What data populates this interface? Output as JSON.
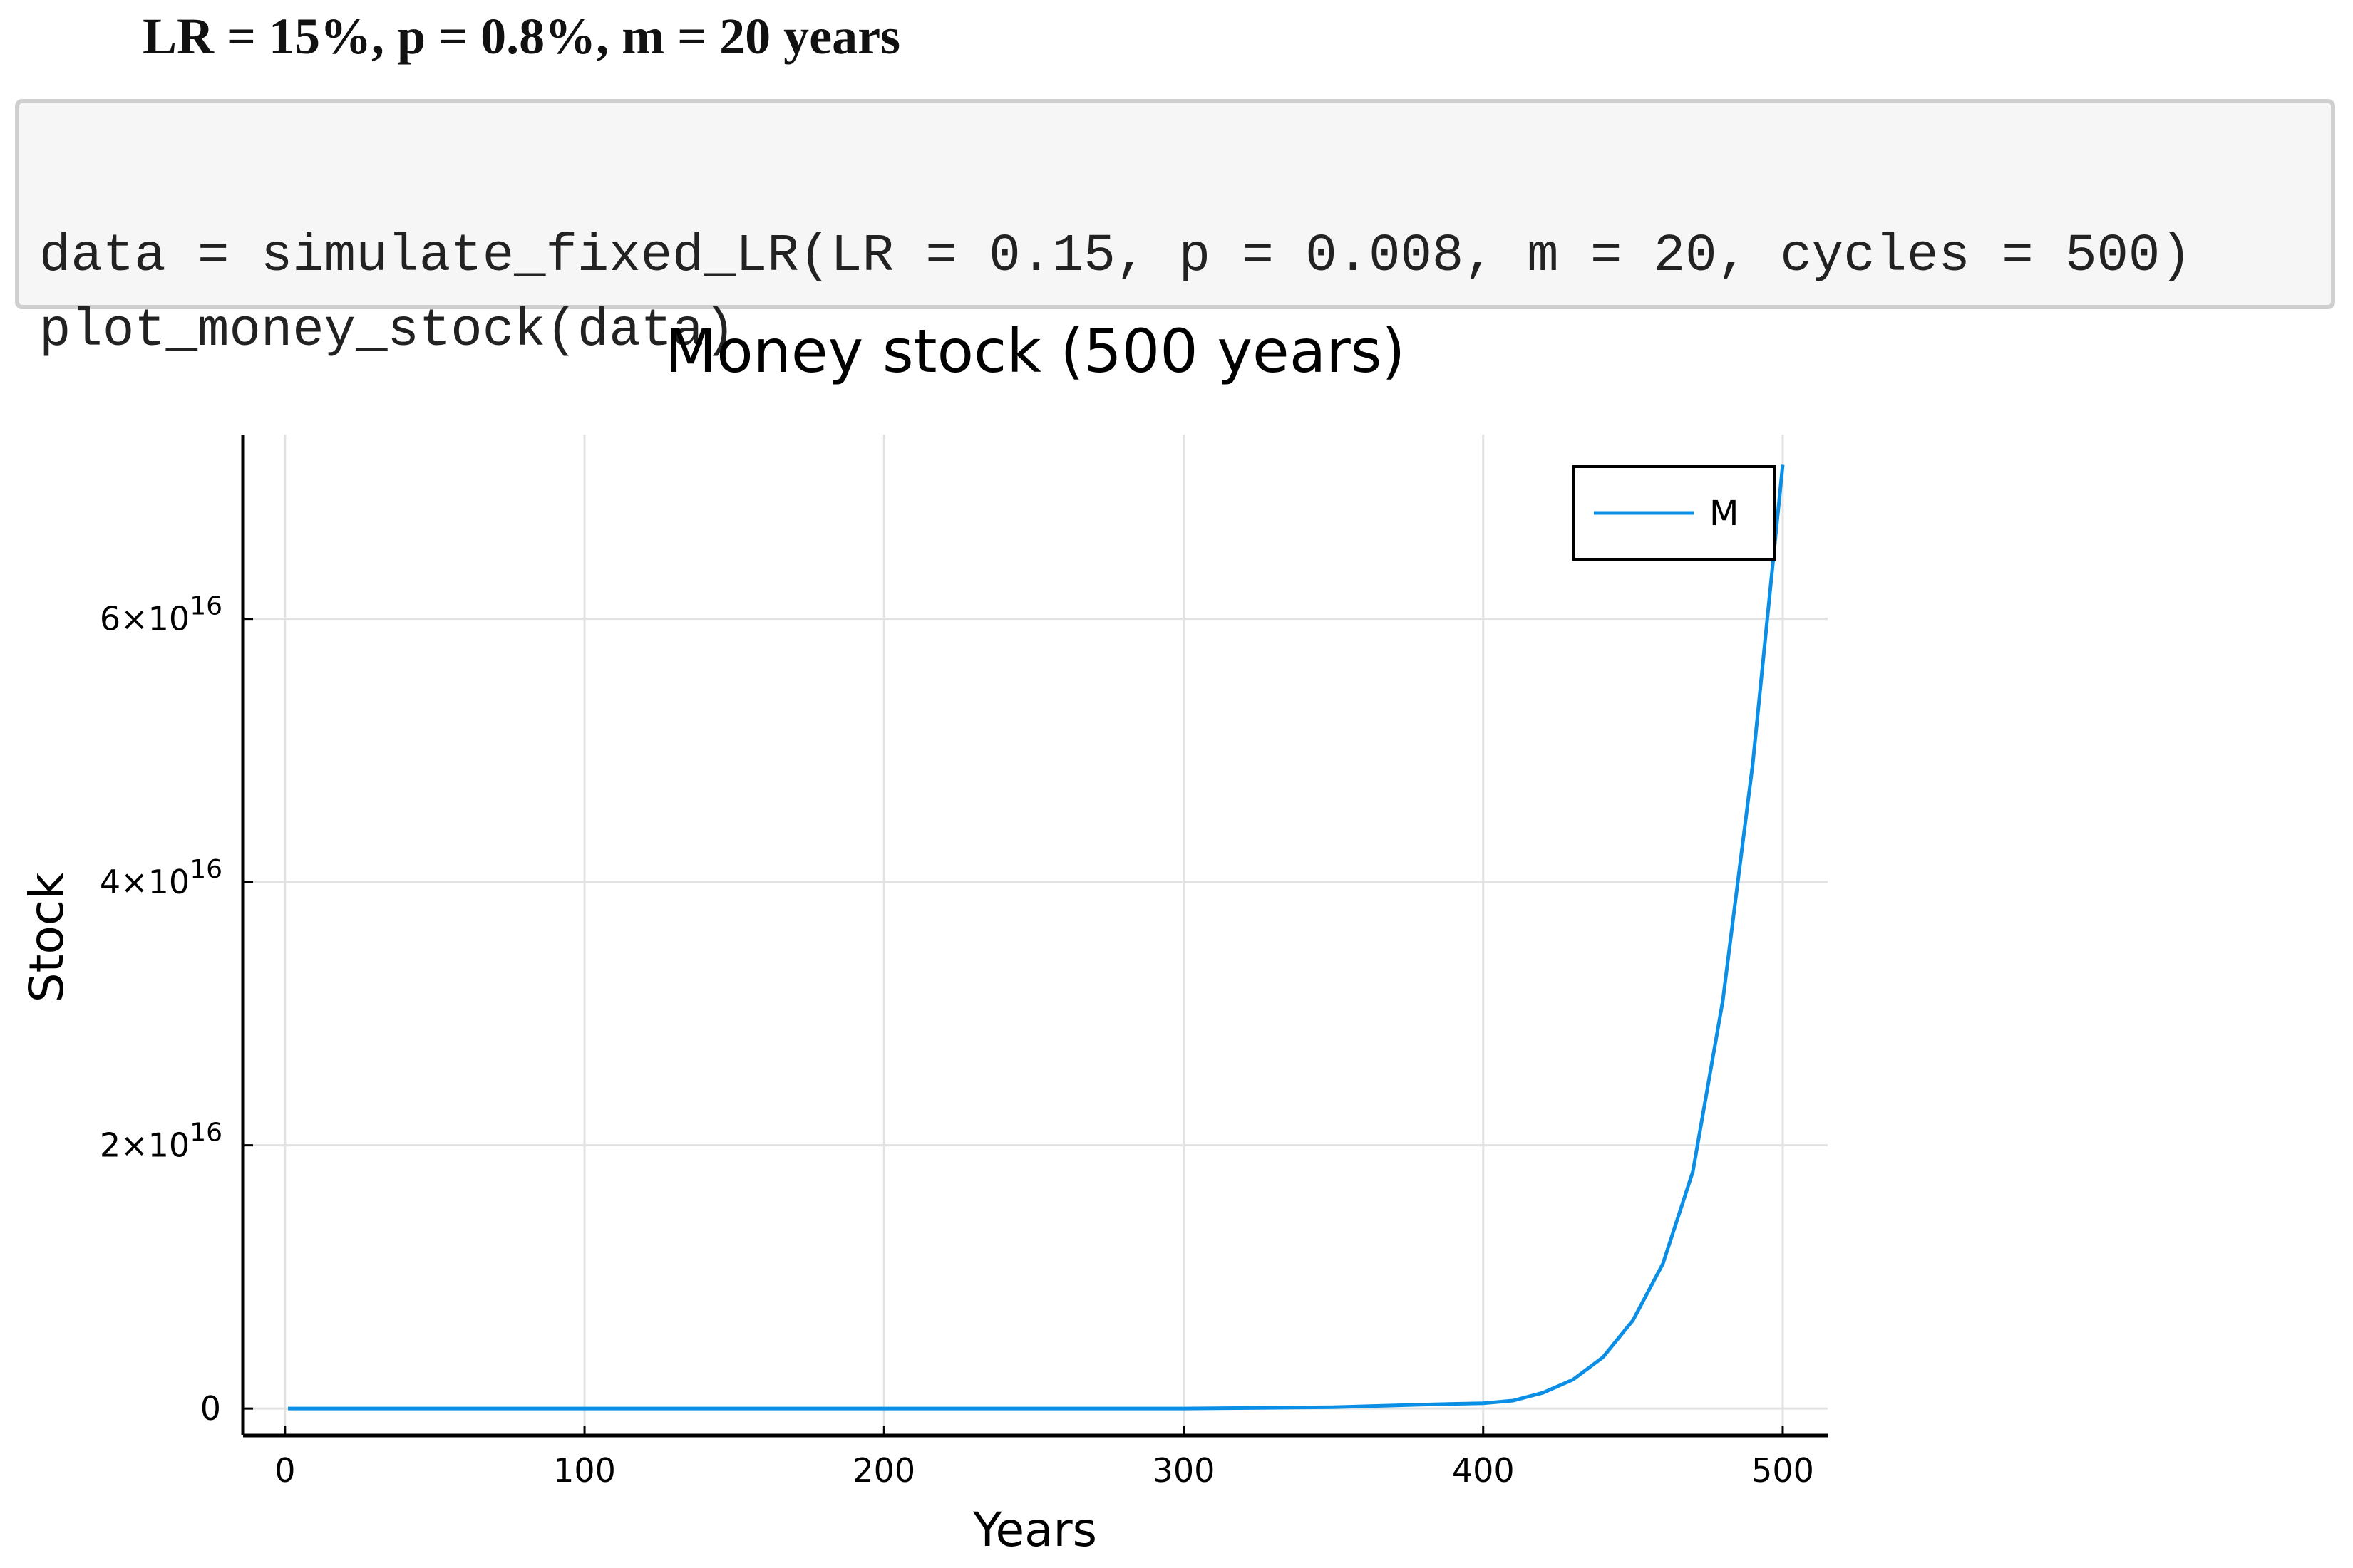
{
  "header": {
    "title": "LR = 15%, p = 0.8%, m = 20 years"
  },
  "code": {
    "lines": [
      "data = simulate_fixed_LR(LR = 0.15, p = 0.008, m = 20, cycles = 500)",
      "plot_money_stock(data)"
    ]
  },
  "chart_data": {
    "type": "line",
    "title": "Money stock (500 years)",
    "x_label": "Years",
    "y_label": "Stock",
    "x": [
      1,
      100,
      200,
      300,
      350,
      380,
      400,
      410,
      420,
      430,
      440,
      450,
      460,
      470,
      480,
      490,
      500
    ],
    "series": [
      {
        "name": "M",
        "color": "#0a8ee6",
        "values": [
          0,
          0,
          0,
          0,
          100000000000000,
          300000000000000,
          400000000000000,
          600000000000000,
          1200000000000000,
          2200000000000000,
          3900000000000000,
          6700000000000000,
          11000000000000000,
          18000000000000000,
          31000000000000000,
          49000000000000000,
          71700000000000000
        ]
      }
    ],
    "xlim": [
      -14,
      515
    ],
    "ylim": [
      -2050000000000000,
      74000000000000000
    ],
    "xticks": [
      0,
      100,
      200,
      300,
      400,
      500
    ],
    "yticks": [
      0,
      {
        "value": 20000000000000000,
        "label": "2×10",
        "exponent": "16"
      },
      {
        "value": 40000000000000000,
        "label": "4×10",
        "exponent": "16"
      },
      {
        "value": 60000000000000000,
        "label": "6×10",
        "exponent": "16"
      }
    ],
    "grid": true,
    "legend": "top-right"
  }
}
